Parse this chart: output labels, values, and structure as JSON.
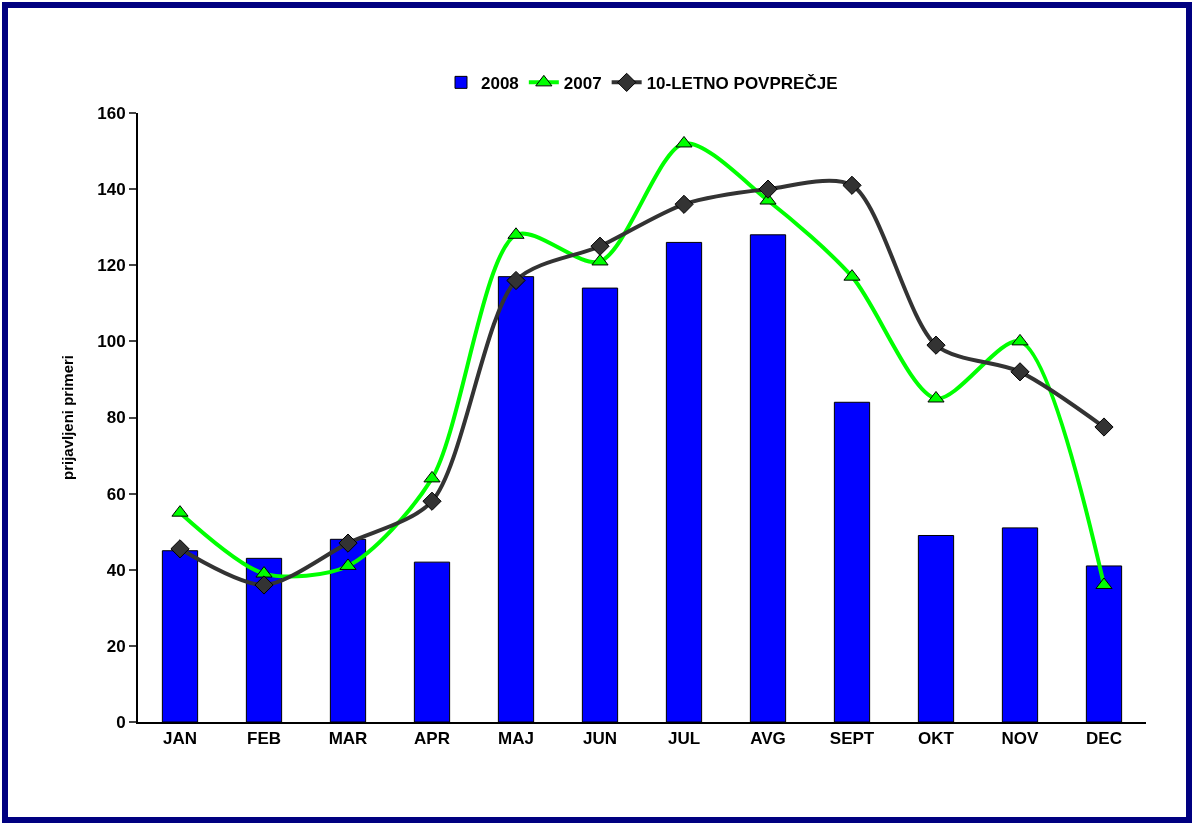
{
  "chart_data": {
    "type": "bar",
    "ylabel": "prijavljeni primeri",
    "categories": [
      "JAN",
      "FEB",
      "MAR",
      "APR",
      "MAJ",
      "JUN",
      "JUL",
      "AVG",
      "SEPT",
      "OKT",
      "NOV",
      "DEC"
    ],
    "series": [
      {
        "name": "2008",
        "color": "#0000ff",
        "values": [
          45,
          43,
          48,
          42,
          117,
          114,
          126,
          128,
          84,
          49,
          51,
          41
        ]
      },
      {
        "name": "2007",
        "type": "line",
        "color": "#00ff00",
        "marker": "triangle",
        "values": [
          55,
          39,
          41,
          64,
          128,
          121,
          152,
          137,
          117,
          85,
          100,
          36
        ]
      },
      {
        "name": "10-LETNO POVPREČJE",
        "type": "line",
        "color": "#333333",
        "marker": "diamond",
        "values": [
          45.5,
          36,
          47,
          58,
          116,
          125,
          136,
          140,
          141,
          99,
          92,
          77.5
        ]
      }
    ],
    "ylim": [
      0,
      160
    ],
    "yticks": [
      0,
      20,
      40,
      60,
      80,
      100,
      120,
      140,
      160
    ],
    "grid": false,
    "legend": "top"
  }
}
